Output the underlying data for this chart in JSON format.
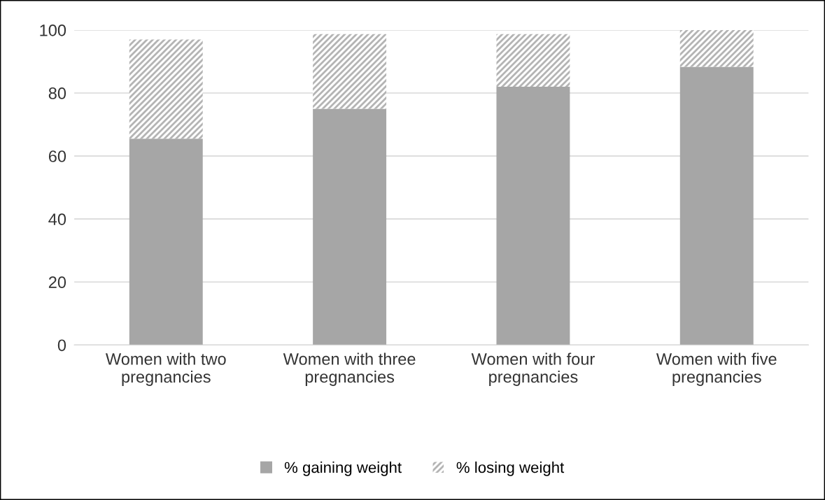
{
  "chart_data": {
    "type": "bar",
    "stacked": true,
    "categories": [
      "Women with two pregnancies",
      "Women with three pregnancies",
      "Women with four pregnancies",
      "Women with five pregnancies"
    ],
    "series": [
      {
        "name": "% gaining weight",
        "color": "#a6a6a6",
        "values": [
          65.5,
          75,
          82,
          88.3
        ]
      },
      {
        "name": "% losing weight",
        "color": "#b4b4b4",
        "values": [
          31.5,
          23.7,
          16.7,
          11.7
        ]
      }
    ],
    "ylim": [
      0,
      100
    ],
    "yticks": [
      0,
      20,
      40,
      60,
      80,
      100
    ],
    "grid": "y",
    "legend": "bottom"
  }
}
